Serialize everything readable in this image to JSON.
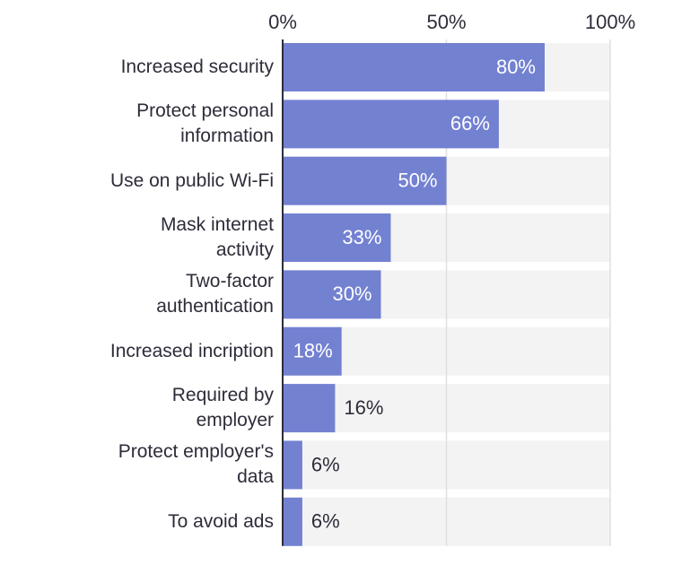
{
  "chart_data": {
    "type": "barh",
    "categories": [
      "Increased security",
      "Protect personal\ninformation",
      "Use on public Wi-Fi",
      "Mask internet\nactivity",
      "Two-factor\nauthentication",
      "Increased incription",
      "Required by\nemployer",
      "Protect employer's\ndata",
      "To avoid ads"
    ],
    "values": [
      80,
      66,
      50,
      33,
      30,
      18,
      16,
      6,
      6
    ],
    "value_labels": [
      "80%",
      "66%",
      "50%",
      "33%",
      "30%",
      "18%",
      "16%",
      "6%",
      "6%"
    ],
    "color": "#7381d1",
    "xlim": [
      0,
      100
    ],
    "xticks": [
      {
        "value": 0,
        "label": "0%"
      },
      {
        "value": 50,
        "label": "50%"
      },
      {
        "value": 100,
        "label": "100%"
      }
    ],
    "grid": true
  }
}
